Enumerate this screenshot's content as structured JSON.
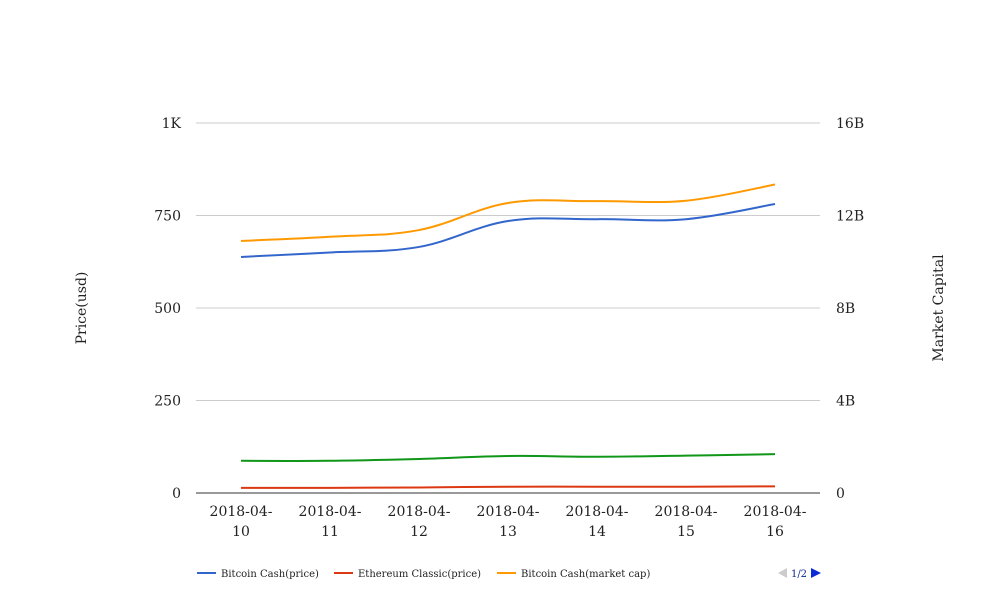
{
  "chart_data": {
    "type": "line",
    "x": [
      "2018-04-10",
      "2018-04-11",
      "2018-04-12",
      "2018-04-13",
      "2018-04-14",
      "2018-04-15",
      "2018-04-16"
    ],
    "x_tick_lines": [
      [
        "2018-04-",
        "10"
      ],
      [
        "2018-04-",
        "11"
      ],
      [
        "2018-04-",
        "12"
      ],
      [
        "2018-04-",
        "13"
      ],
      [
        "2018-04-",
        "14"
      ],
      [
        "2018-04-",
        "15"
      ],
      [
        "2018-04-",
        "16"
      ]
    ],
    "y_left": {
      "label": "Price(usd)",
      "range": [
        0,
        1000
      ],
      "ticks": [
        0,
        250,
        500,
        750,
        1000
      ],
      "tick_labels": [
        "0",
        "250",
        "500",
        "750",
        "1K"
      ]
    },
    "y_right": {
      "label": "Market Capital",
      "range": [
        0,
        16000000000
      ],
      "ticks": [
        0,
        4000000000,
        8000000000,
        12000000000,
        16000000000
      ],
      "tick_labels": [
        "0",
        "4B",
        "8B",
        "12B",
        "16B"
      ]
    },
    "grid": true,
    "legend_position": "bottom",
    "series": [
      {
        "name": "Bitcoin Cash(price)",
        "axis": "left",
        "color": "#3366cc",
        "values": [
          638,
          650,
          665,
          735,
          740,
          740,
          781
        ]
      },
      {
        "name": "Ethereum Classic(price)",
        "axis": "left",
        "color": "#dc3912",
        "values": [
          14,
          14,
          15,
          17,
          17,
          17,
          18
        ]
      },
      {
        "name": "Bitcoin Cash(market cap)",
        "axis": "right",
        "color": "#ff9900",
        "values": [
          10900000000,
          11080000000,
          11370000000,
          12540000000,
          12620000000,
          12640000000,
          13340000000
        ]
      },
      {
        "axis": "left",
        "color": "#109618",
        "values": [
          87,
          87,
          92,
          100,
          98,
          101,
          105
        ]
      }
    ],
    "legend_pager": "1/2"
  }
}
